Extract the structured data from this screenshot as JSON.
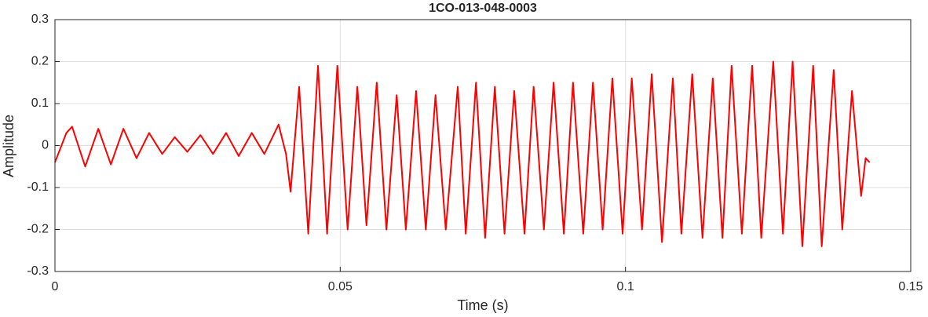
{
  "chart_data": {
    "type": "line",
    "title": "1CO-013-048-0003",
    "x_label": "Time (s)",
    "y_label": "Amplitude",
    "xlim": [
      0,
      0.15
    ],
    "xticks": [
      0,
      0.05,
      0.1,
      0.15
    ],
    "ylim": [
      -0.3,
      0.3
    ],
    "yticks": [
      -0.3,
      -0.2,
      -0.1,
      0,
      0.1,
      0.2,
      0.3
    ],
    "grid": true,
    "series": [
      {
        "color": "#ff0000",
        "x": [
          0,
          0.002,
          0.003,
          0.0053,
          0.0076,
          0.0098,
          0.012,
          0.0143,
          0.0165,
          0.0188,
          0.021,
          0.0232,
          0.0255,
          0.0277,
          0.03,
          0.0322,
          0.0345,
          0.0367,
          0.0392,
          0.0405,
          0.0413,
          0.0428,
          0.0444,
          0.0461,
          0.0477,
          0.0495,
          0.0513,
          0.053,
          0.0546,
          0.0564,
          0.0581,
          0.0599,
          0.0615,
          0.0633,
          0.065,
          0.0667,
          0.0685,
          0.0706,
          0.072,
          0.0738,
          0.0754,
          0.0771,
          0.0788,
          0.0805,
          0.0823,
          0.0839,
          0.0857,
          0.0874,
          0.0892,
          0.0908,
          0.0926,
          0.0943,
          0.096,
          0.0977,
          0.0995,
          0.1011,
          0.1029,
          0.1046,
          0.1064,
          0.1083,
          0.1098,
          0.1117,
          0.1135,
          0.1153,
          0.117,
          0.1186,
          0.1204,
          0.1222,
          0.1238,
          0.1259,
          0.1276,
          0.1293,
          0.131,
          0.1329,
          0.1344,
          0.1365,
          0.138,
          0.1397,
          0.1413,
          0.1421,
          0.1428
        ],
        "values": [
          -0.04,
          0.03,
          0.045,
          -0.05,
          0.04,
          -0.045,
          0.04,
          -0.03,
          0.03,
          -0.02,
          0.02,
          -0.015,
          0.025,
          -0.02,
          0.03,
          -0.025,
          0.03,
          -0.02,
          0.05,
          -0.02,
          -0.11,
          0.14,
          -0.21,
          0.19,
          -0.21,
          0.19,
          -0.2,
          0.14,
          -0.19,
          0.15,
          -0.2,
          0.12,
          -0.2,
          0.13,
          -0.2,
          0.12,
          -0.2,
          0.14,
          -0.21,
          0.15,
          -0.22,
          0.14,
          -0.21,
          0.13,
          -0.21,
          0.14,
          -0.2,
          0.15,
          -0.21,
          0.15,
          -0.21,
          0.15,
          -0.2,
          0.16,
          -0.21,
          0.16,
          -0.2,
          0.17,
          -0.23,
          0.16,
          -0.21,
          0.17,
          -0.22,
          0.16,
          -0.22,
          0.19,
          -0.21,
          0.19,
          -0.22,
          0.2,
          -0.21,
          0.2,
          -0.24,
          0.19,
          -0.24,
          0.18,
          -0.2,
          0.13,
          -0.12,
          -0.03,
          -0.04
        ]
      }
    ]
  }
}
